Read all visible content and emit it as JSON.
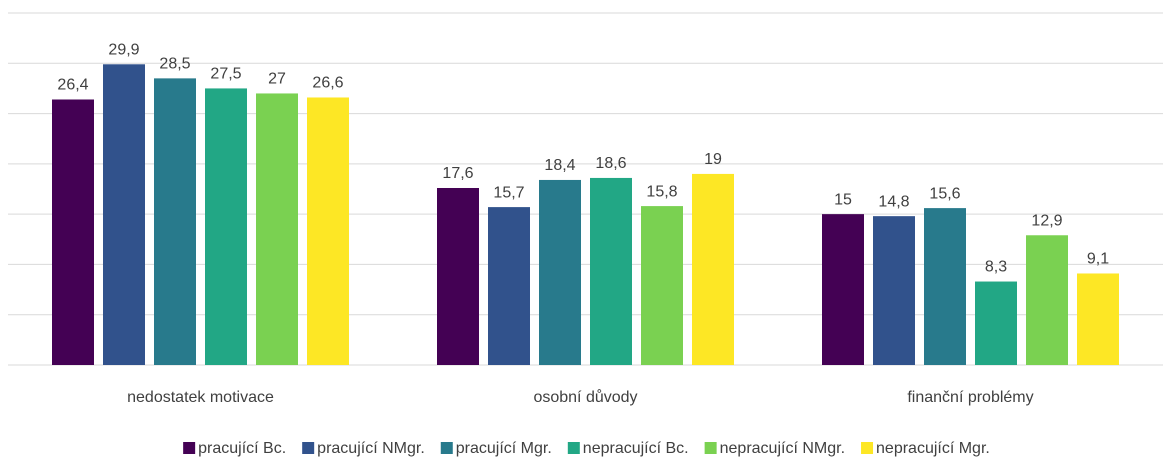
{
  "chart_data": {
    "type": "bar",
    "categories": [
      "nedostatek motivace",
      "osobní důvody",
      "finanční problémy"
    ],
    "series": [
      {
        "name": "pracující Bc.",
        "color": "#440154",
        "values": [
          26.4,
          17.6,
          15
        ]
      },
      {
        "name": "pracující NMgr.",
        "color": "#31528c",
        "values": [
          29.9,
          15.7,
          14.8
        ]
      },
      {
        "name": "pracující Mgr.",
        "color": "#287a8c",
        "values": [
          28.5,
          18.4,
          15.6
        ]
      },
      {
        "name": "nepracující Bc.",
        "color": "#22a785",
        "values": [
          27.5,
          18.6,
          8.3
        ]
      },
      {
        "name": "nepracující NMgr.",
        "color": "#7ad151",
        "values": [
          27,
          15.8,
          12.9
        ]
      },
      {
        "name": "nepracující Mgr.",
        "color": "#fde725",
        "values": [
          26.6,
          19,
          9.1
        ]
      }
    ],
    "value_labels": [
      [
        "26,4",
        "17,6",
        "15"
      ],
      [
        "29,9",
        "15,7",
        "14,8"
      ],
      [
        "28,5",
        "18,4",
        "15,6"
      ],
      [
        "27,5",
        "18,6",
        "8,3"
      ],
      [
        "27",
        "15,8",
        "12,9"
      ],
      [
        "26,6",
        "19",
        "9,1"
      ]
    ],
    "ylim": [
      0,
      35
    ],
    "yticks": [
      0,
      5,
      10,
      15,
      20,
      25,
      30,
      35
    ],
    "grid": true,
    "legend": "bottom"
  }
}
